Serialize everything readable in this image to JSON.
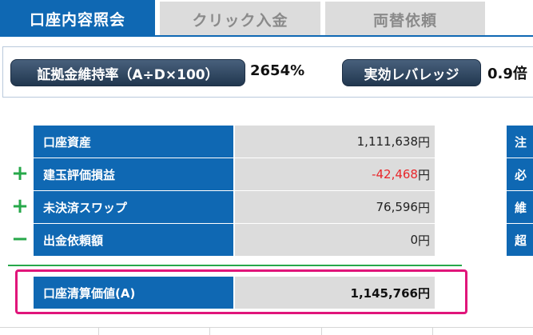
{
  "tabs": [
    {
      "label": "口座内容照会",
      "active": true
    },
    {
      "label": "クリック入金",
      "active": false
    },
    {
      "label": "両替依頼",
      "active": false
    }
  ],
  "ratio_panel": {
    "margin_ratio_label": "証拠金維持率（A÷D×100）",
    "margin_ratio_value": "2654%",
    "leverage_label": "実効レバレッジ",
    "leverage_value": "0.9倍"
  },
  "account_rows": [
    {
      "sign": "",
      "label": "口座資産",
      "value": "1,111,638",
      "unit": "円",
      "negative": false
    },
    {
      "sign": "+",
      "label": "建玉評価損益",
      "value": "-42,468",
      "unit": "円",
      "negative": true
    },
    {
      "sign": "+",
      "label": "未決済スワップ",
      "value": "76,596",
      "unit": "円",
      "negative": false
    },
    {
      "sign": "−",
      "label": "出金依頼額",
      "value": "0",
      "unit": "円",
      "negative": false
    }
  ],
  "right_column_labels": [
    "注",
    "必",
    "維",
    "超"
  ],
  "summary": {
    "label": "口座清算価値(A)",
    "value": "1,145,766円"
  },
  "colors": {
    "accent_blue": "#0f68b3",
    "positive_sign_green": "#27a84a",
    "negative_red": "#e8262a",
    "highlight_pink": "#e0157a"
  }
}
